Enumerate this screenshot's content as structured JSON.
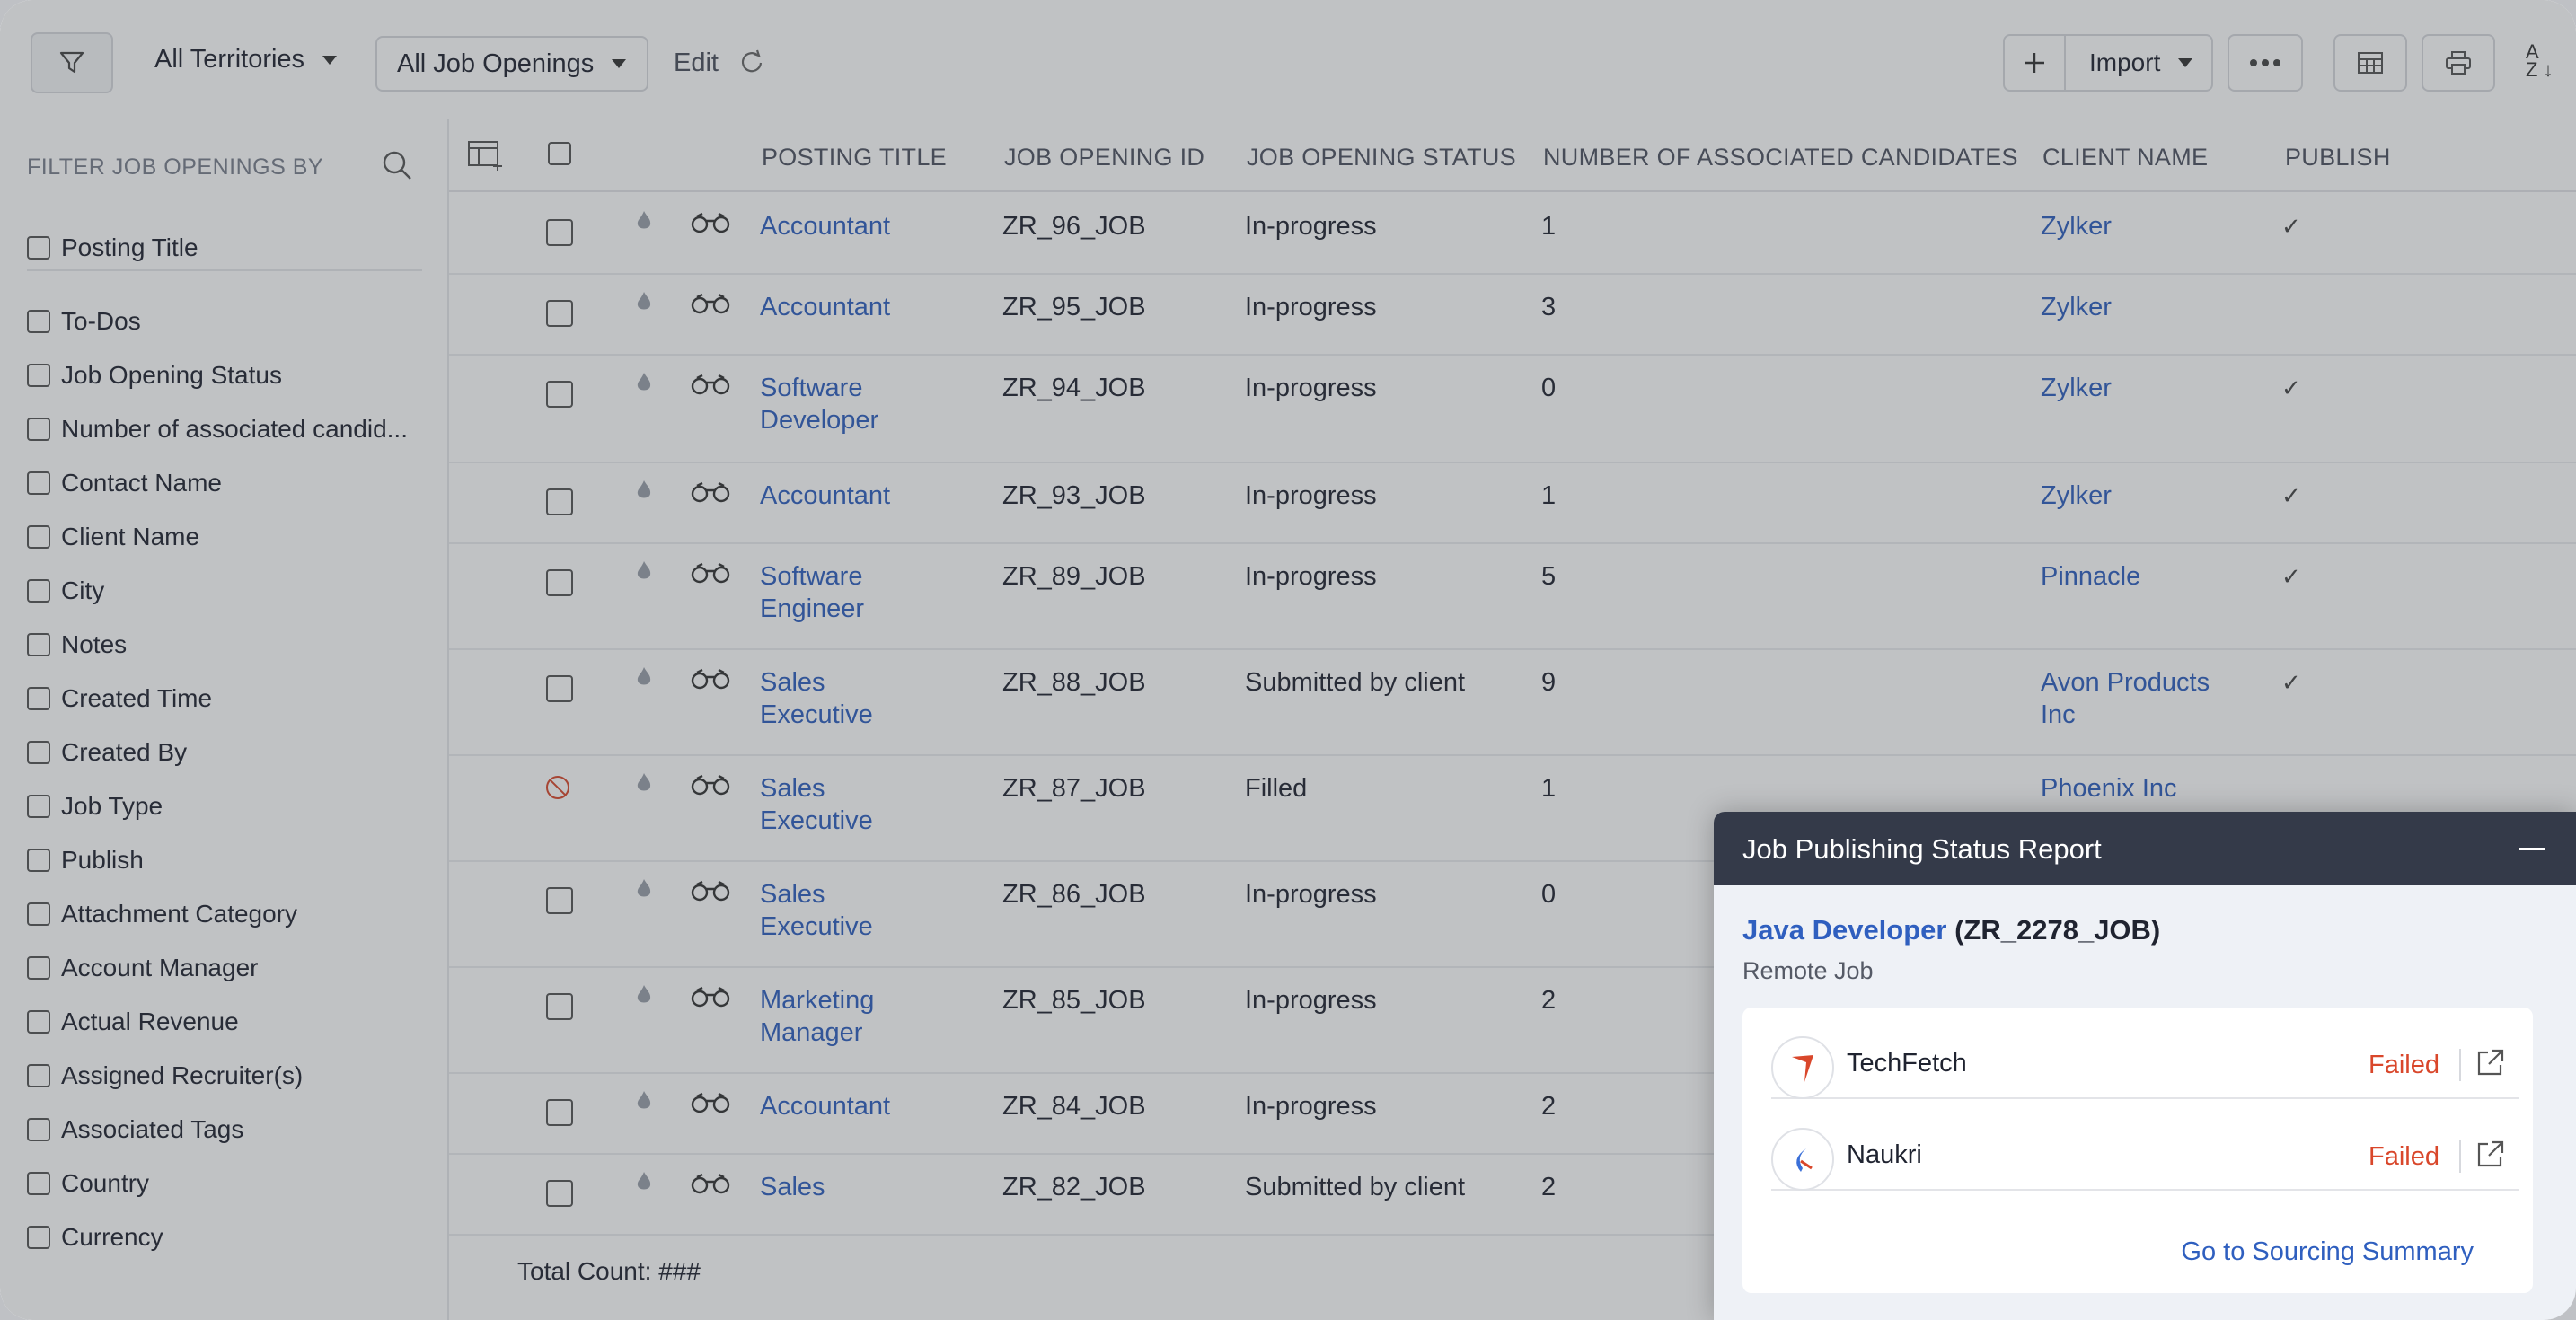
{
  "toolbar": {
    "territories": "All Territories",
    "job_view": "All Job Openings",
    "edit": "Edit",
    "import": "Import"
  },
  "sidebar": {
    "title": "FILTER JOB OPENINGS BY",
    "items": [
      "Posting Title",
      "To-Dos",
      "Job Opening Status",
      "Number of associated candid...",
      "Contact Name",
      "Client Name",
      "City",
      "Notes",
      "Created Time",
      "Created By",
      "Job Type",
      "Publish",
      "Attachment Category",
      "Account Manager",
      "Actual Revenue",
      "Assigned Recruiter(s)",
      "Associated Tags",
      "Country",
      "Currency"
    ]
  },
  "table": {
    "headers": {
      "posting_title": "POSTING TITLE",
      "job_opening_id": "JOB OPENING ID",
      "status": "JOB OPENING STATUS",
      "candidates": "NUMBER OF ASSOCIATED CANDIDATES",
      "client": "CLIENT NAME",
      "publish": "PUBLISH"
    },
    "rows": [
      {
        "title": [
          "Accountant"
        ],
        "id": "ZR_96_JOB",
        "status": "In-progress",
        "count": "1",
        "client": [
          "Zylker"
        ],
        "publish": "✓"
      },
      {
        "title": [
          "Accountant"
        ],
        "id": "ZR_95_JOB",
        "status": "In-progress",
        "count": "3",
        "client": [
          "Zylker"
        ],
        "publish": ""
      },
      {
        "title": [
          "Software",
          "Developer"
        ],
        "id": "ZR_94_JOB",
        "status": "In-progress",
        "count": "0",
        "client": [
          "Zylker"
        ],
        "publish": "✓"
      },
      {
        "title": [
          "Accountant"
        ],
        "id": "ZR_93_JOB",
        "status": "In-progress",
        "count": "1",
        "client": [
          "Zylker"
        ],
        "publish": "✓"
      },
      {
        "title": [
          "Software",
          "Engineer"
        ],
        "id": "ZR_89_JOB",
        "status": "In-progress",
        "count": "5",
        "client": [
          "Pinnacle"
        ],
        "publish": "✓"
      },
      {
        "title": [
          "Sales",
          "Executive"
        ],
        "id": "ZR_88_JOB",
        "status": "Submitted by client",
        "count": "9",
        "client": [
          "Avon Products",
          "Inc"
        ],
        "publish": "✓"
      },
      {
        "title": [
          "Sales",
          "Executive"
        ],
        "id": "ZR_87_JOB",
        "status": "Filled",
        "count": "1",
        "client": [
          "Phoenix Inc"
        ],
        "publish": ""
      },
      {
        "title": [
          "Sales",
          "Executive"
        ],
        "id": "ZR_86_JOB",
        "status": "In-progress",
        "count": "0",
        "client": [],
        "publish": ""
      },
      {
        "title": [
          "Marketing",
          "Manager"
        ],
        "id": "ZR_85_JOB",
        "status": "In-progress",
        "count": "2",
        "client": [],
        "publish": ""
      },
      {
        "title": [
          "Accountant"
        ],
        "id": "ZR_84_JOB",
        "status": "In-progress",
        "count": "2",
        "client": [],
        "publish": ""
      },
      {
        "title": [
          "Sales"
        ],
        "id": "ZR_82_JOB",
        "status": "Submitted by client",
        "count": "2",
        "client": [],
        "publish": ""
      }
    ],
    "total": "Total Count: ###"
  },
  "panel": {
    "title": "Job Publishing Status Report",
    "job_title": "Java Developer",
    "job_id": " (ZR_2278_JOB)",
    "job_type": "Remote Job",
    "portals": [
      {
        "name": "TechFetch",
        "status": "Failed"
      },
      {
        "name": "Naukri",
        "status": "Failed"
      }
    ],
    "goto": "Go to Sourcing Summary"
  },
  "colors": {
    "accent": "#2f5fbf",
    "failed": "#d9472b",
    "panel_header": "#343a49"
  }
}
